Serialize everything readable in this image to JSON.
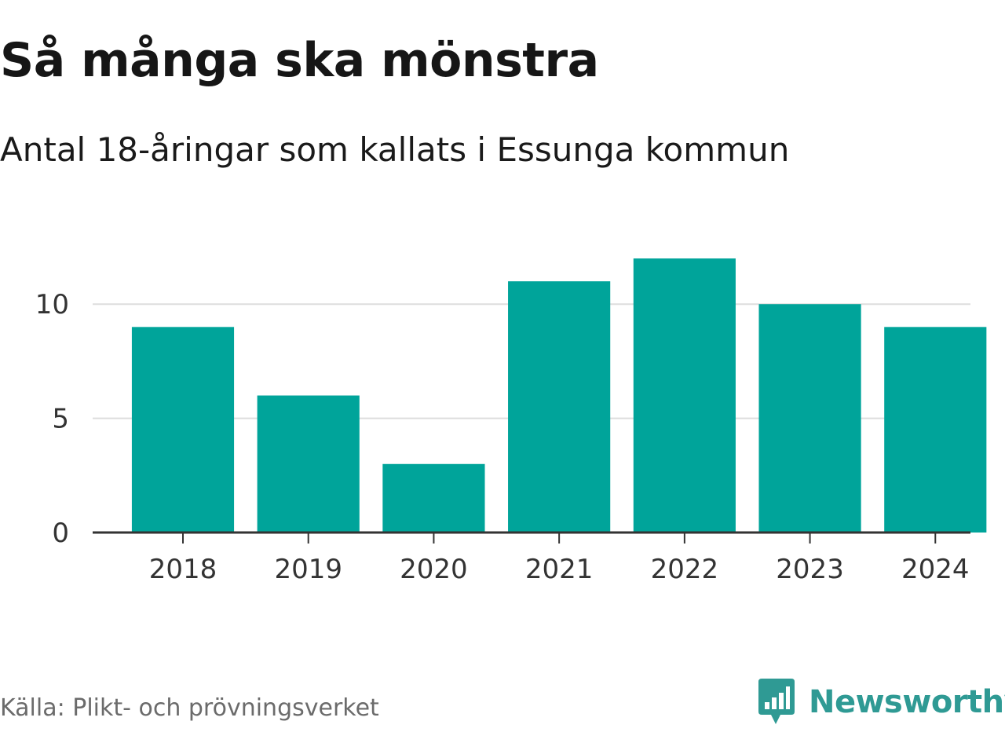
{
  "title": "Så många ska mönstra",
  "subtitle": "Antal 18-åringar som kallats i Essunga kommun",
  "source": "Källa: Plikt- och prövningsverket",
  "brand": {
    "name": "Newsworthy",
    "icon": "bar-chart-speech-bubble-icon",
    "color": "#2f9a94"
  },
  "chart_data": {
    "type": "bar",
    "categories": [
      "2018",
      "2019",
      "2020",
      "2021",
      "2022",
      "2023",
      "2024"
    ],
    "values": [
      9,
      6,
      3,
      11,
      12,
      10,
      9
    ],
    "ylim": [
      0,
      13
    ],
    "yticks": [
      0,
      5,
      10
    ],
    "grid": true,
    "bar_color": "#00a49a",
    "grid_color": "#dddddd",
    "axis_color": "#333333"
  }
}
